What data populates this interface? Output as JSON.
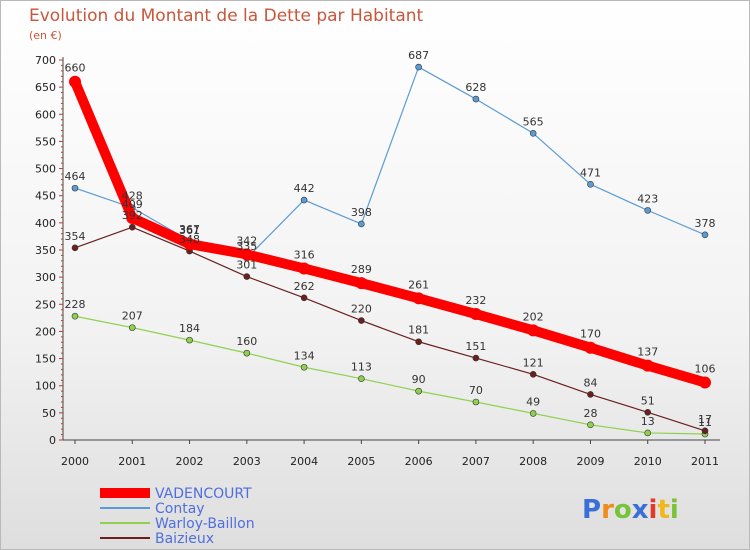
{
  "chart_data": {
    "type": "line",
    "title": "Evolution du Montant de la Dette par Habitant",
    "subtitle": "(en €)",
    "xlabel": "",
    "ylabel": "",
    "categories": [
      "2000",
      "2001",
      "2002",
      "2003",
      "2004",
      "2005",
      "2006",
      "2007",
      "2008",
      "2009",
      "2010",
      "2011"
    ],
    "ylim": [
      0,
      700
    ],
    "yticks": [
      0,
      50,
      100,
      150,
      200,
      250,
      300,
      350,
      400,
      450,
      500,
      550,
      600,
      650,
      700
    ],
    "grid": false,
    "legend_position": "bottom-left",
    "series": [
      {
        "name": "VADENCOURT",
        "color": "#ff0000",
        "values": [
          660,
          409,
          361,
          342,
          316,
          289,
          261,
          232,
          202,
          170,
          137,
          106
        ]
      },
      {
        "name": "Contay",
        "color": "#5b9bd5",
        "values": [
          464,
          428,
          367,
          335,
          442,
          398,
          687,
          628,
          565,
          471,
          423,
          378
        ]
      },
      {
        "name": "Warloy-Baillon",
        "color": "#8fd14f",
        "values": [
          228,
          207,
          184,
          160,
          134,
          113,
          90,
          70,
          49,
          28,
          13,
          11
        ]
      },
      {
        "name": "Baizieux",
        "color": "#6b1f1f",
        "values": [
          354,
          392,
          348,
          301,
          262,
          220,
          181,
          151,
          121,
          84,
          51,
          17
        ]
      }
    ]
  },
  "logo": {
    "text": "Proxiti",
    "letters": [
      "P",
      "r",
      "o",
      "x",
      "i",
      "t",
      "i"
    ]
  }
}
